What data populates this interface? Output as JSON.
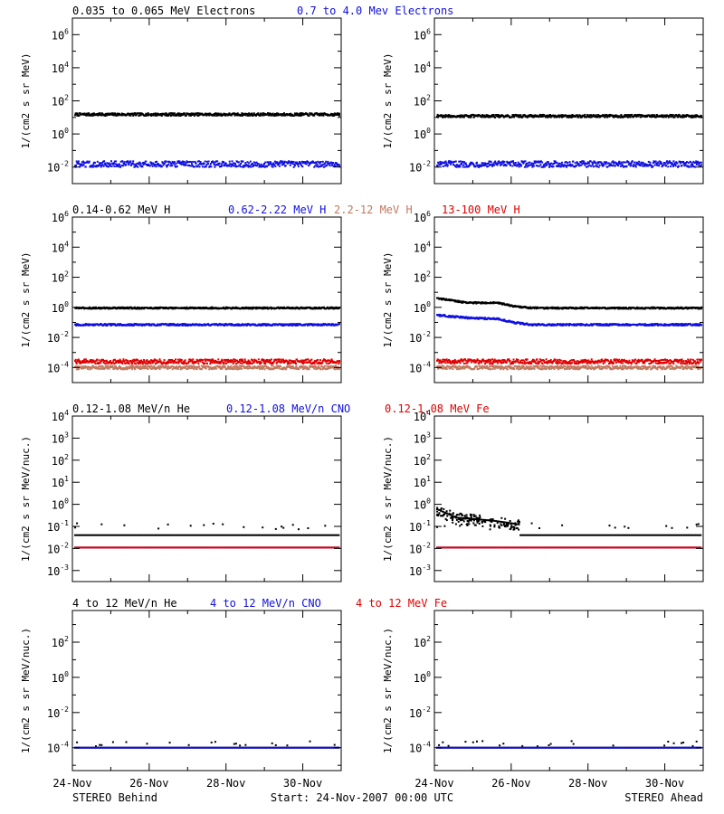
{
  "footer": {
    "left": "STEREO Behind",
    "center": "Start: 24-Nov-2007 00:00 UTC",
    "right": "STEREO Ahead"
  },
  "x_ticks": [
    "24-Nov",
    "26-Nov",
    "28-Nov",
    "30-Nov"
  ],
  "colors": {
    "black": "#000000",
    "blue": "#1010e0",
    "tan": "#c07a60",
    "red": "#e00000"
  },
  "chart_data": [
    {
      "type": "scatter",
      "id": "electrons",
      "titles": [
        {
          "text": "0.035 to 0.065 MeV Electrons",
          "color": "#000000"
        },
        {
          "text": "0.7 to 4.0 Mev Electrons",
          "color": "#1010e0"
        }
      ],
      "ylabel": "1/(cm2 s sr MeV)",
      "yscale": "log",
      "ylim_exp": [
        -3,
        7
      ],
      "ytick_exp": [
        -2,
        0,
        2,
        4,
        6
      ],
      "x": {
        "start": "24-Nov-2007",
        "end": "01-Dec-2007",
        "ticks": [
          "24-Nov",
          "26-Nov",
          "28-Nov",
          "30-Nov"
        ]
      },
      "panels": [
        {
          "spacecraft": "STEREO Behind",
          "series": [
            {
              "name": "0.035 to 0.065 MeV Electrons",
              "color": "#000000",
              "level": 15,
              "spread": 0.08
            },
            {
              "name": "0.7 to 4.0 Mev Electrons",
              "color": "#1010e0",
              "level": 0.015,
              "spread": 0.18
            }
          ]
        },
        {
          "spacecraft": "STEREO Ahead",
          "series": [
            {
              "name": "0.035 to 0.065 MeV Electrons",
              "color": "#000000",
              "level": 12,
              "spread": 0.08
            },
            {
              "name": "0.7 to 4.0 Mev Electrons",
              "color": "#1010e0",
              "level": 0.015,
              "spread": 0.18
            }
          ]
        }
      ]
    },
    {
      "type": "scatter",
      "id": "protons",
      "titles": [
        {
          "text": "0.14-0.62 MeV H",
          "color": "#000000"
        },
        {
          "text": "0.62-2.22 MeV H",
          "color": "#1010e0"
        },
        {
          "text": "2.2-12 MeV H",
          "color": "#c07a60"
        },
        {
          "text": "13-100 MeV H",
          "color": "#e00000"
        }
      ],
      "ylabel": "1/(cm2 s sr MeV)",
      "yscale": "log",
      "ylim_exp": [
        -5,
        6
      ],
      "ytick_exp": [
        -4,
        -2,
        0,
        2,
        4,
        6
      ],
      "x": {
        "start": "24-Nov-2007",
        "end": "01-Dec-2007",
        "ticks": [
          "24-Nov",
          "26-Nov",
          "28-Nov",
          "30-Nov"
        ]
      },
      "panels": [
        {
          "spacecraft": "STEREO Behind",
          "series": [
            {
              "name": "0.14-0.62 MeV H",
              "color": "#000000",
              "level": 0.9,
              "spread": 0.05
            },
            {
              "name": "0.62-2.22 MeV H",
              "color": "#1010e0",
              "level": 0.07,
              "spread": 0.06
            },
            {
              "name": "2.2-12 MeV H",
              "color": "#c07a60",
              "level": 0.0001,
              "spread": 0.12
            },
            {
              "name": "13-100 MeV H",
              "color": "#e00000",
              "level": 0.00025,
              "spread": 0.15
            }
          ]
        },
        {
          "spacecraft": "STEREO Ahead",
          "series": [
            {
              "name": "0.14-0.62 MeV H",
              "color": "#000000",
              "level": 0.9,
              "spread": 0.05,
              "early": [
                {
                  "day": 0,
                  "value": 4
                },
                {
                  "day": 0.8,
                  "value": 2
                },
                {
                  "day": 1.6,
                  "value": 2
                },
                {
                  "day": 2.0,
                  "value": 1.2
                },
                {
                  "day": 2.5,
                  "value": 0.9
                }
              ]
            },
            {
              "name": "0.62-2.22 MeV H",
              "color": "#1010e0",
              "level": 0.07,
              "spread": 0.06,
              "early": [
                {
                  "day": 0,
                  "value": 0.3
                },
                {
                  "day": 0.8,
                  "value": 0.2
                },
                {
                  "day": 1.6,
                  "value": 0.17
                },
                {
                  "day": 2.0,
                  "value": 0.1
                },
                {
                  "day": 2.5,
                  "value": 0.07
                }
              ]
            },
            {
              "name": "2.2-12 MeV H",
              "color": "#c07a60",
              "level": 0.0001,
              "spread": 0.12
            },
            {
              "name": "13-100 MeV H",
              "color": "#e00000",
              "level": 0.00025,
              "spread": 0.15
            }
          ]
        }
      ]
    },
    {
      "type": "scatter",
      "id": "heavy-ions-low",
      "titles": [
        {
          "text": "0.12-1.08 MeV/n He",
          "color": "#000000"
        },
        {
          "text": "0.12-1.08 MeV/n CNO",
          "color": "#1010e0"
        },
        {
          "text": "0.12-1.08 MeV Fe",
          "color": "#e00000"
        }
      ],
      "ylabel": "1/(cm2 s sr MeV/nuc.)",
      "yscale": "log",
      "ylim_exp": [
        -3.5,
        4
      ],
      "ytick_exp": [
        -3,
        -2,
        -1,
        0,
        1,
        2,
        3,
        4
      ],
      "x": {
        "start": "24-Nov-2007",
        "end": "01-Dec-2007",
        "ticks": [
          "24-Nov",
          "26-Nov",
          "28-Nov",
          "30-Nov"
        ]
      },
      "panels": [
        {
          "spacecraft": "STEREO Behind",
          "series": [
            {
              "name": "0.12-1.08 MeV/n He",
              "color": "#000000",
              "level": 0.04,
              "upper": 0.1
            },
            {
              "name": "0.12-1.08 MeV/n CNO",
              "color": "#1010e0",
              "level": 0.011
            },
            {
              "name": "0.12-1.08 MeV Fe",
              "color": "#e00000",
              "level": 0.011
            }
          ]
        },
        {
          "spacecraft": "STEREO Ahead",
          "series": [
            {
              "name": "0.12-1.08 MeV/n He",
              "color": "#000000",
              "level": 0.04,
              "upper": 0.1,
              "early": [
                {
                  "day": 0,
                  "value": 0.6
                },
                {
                  "day": 0.5,
                  "value": 0.25
                },
                {
                  "day": 1.5,
                  "value": 0.18
                },
                {
                  "day": 2.2,
                  "value": 0.12
                }
              ]
            },
            {
              "name": "0.12-1.08 MeV/n CNO",
              "color": "#1010e0",
              "level": 0.011
            },
            {
              "name": "0.12-1.08 MeV Fe",
              "color": "#e00000",
              "level": 0.011
            }
          ]
        }
      ]
    },
    {
      "type": "scatter",
      "id": "heavy-ions-high",
      "titles": [
        {
          "text": "4 to 12 MeV/n He",
          "color": "#000000"
        },
        {
          "text": "4 to 12 MeV/n CNO",
          "color": "#1010e0"
        },
        {
          "text": "4 to 12 MeV Fe",
          "color": "#e00000"
        }
      ],
      "ylabel": "1/(cm2 s sr MeV/nuc.)",
      "yscale": "log",
      "ylim_exp": [
        -5.3,
        3.8
      ],
      "ytick_exp": [
        -4,
        -2,
        0,
        2
      ],
      "x": {
        "start": "24-Nov-2007",
        "end": "01-Dec-2007",
        "ticks": [
          "24-Nov",
          "26-Nov",
          "28-Nov",
          "30-Nov"
        ]
      },
      "panels": [
        {
          "spacecraft": "STEREO Behind",
          "series": [
            {
              "name": "4 to 12 MeV/n He",
              "color": "#000000",
              "level": 0.0001,
              "upper": 0.00017
            },
            {
              "name": "4 to 12 MeV/n CNO",
              "color": "#1010e0",
              "level": 0.0001
            }
          ]
        },
        {
          "spacecraft": "STEREO Ahead",
          "series": [
            {
              "name": "4 to 12 MeV/n He",
              "color": "#000000",
              "level": 0.0001,
              "upper": 0.00017
            },
            {
              "name": "4 to 12 MeV/n CNO",
              "color": "#1010e0",
              "level": 0.0001
            }
          ]
        }
      ]
    }
  ]
}
